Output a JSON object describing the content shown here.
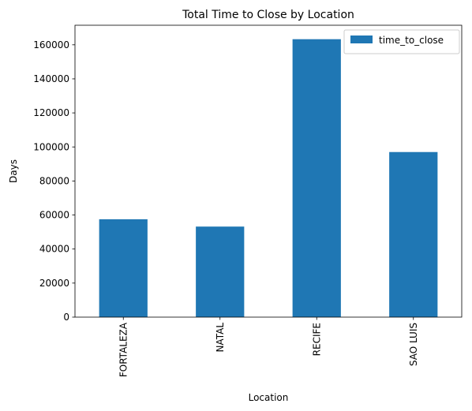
{
  "chart_data": {
    "type": "bar",
    "title": "Total Time to Close by Location",
    "xlabel": "Location",
    "ylabel": "Days",
    "categories": [
      "FORTALEZA",
      "NATAL",
      "RECIFE",
      "SAO LUIS"
    ],
    "series": [
      {
        "name": "time_to_close",
        "values": [
          57500,
          53200,
          163300,
          97000
        ],
        "color": "#1f77b4"
      }
    ],
    "ylim": [
      0,
      171500
    ],
    "yticks": [
      0,
      20000,
      40000,
      60000,
      80000,
      100000,
      120000,
      140000,
      160000
    ],
    "grid": false,
    "legend_position": "top-right",
    "x_tick_rotation": "vertical"
  }
}
